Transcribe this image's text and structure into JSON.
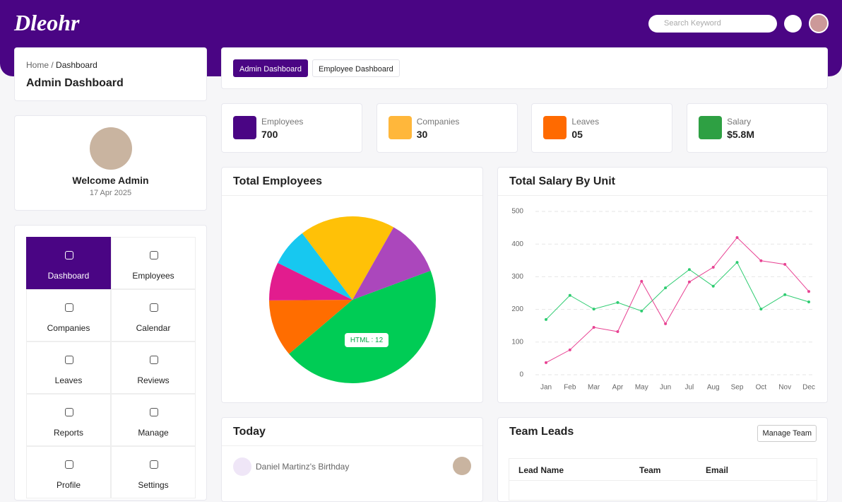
{
  "header": {
    "logo": "Dleohr",
    "search_placeholder": "Search Keyword"
  },
  "breadcrumb": {
    "home": "Home",
    "current": "Dashboard",
    "title": "Admin Dashboard"
  },
  "tabs": [
    "Admin Dashboard",
    "Employee Dashboard"
  ],
  "welcome": {
    "title": "Welcome Admin",
    "date": "17 Apr 2025"
  },
  "stats": [
    {
      "label": "Employees",
      "value": "700"
    },
    {
      "label": "Companies",
      "value": "30"
    },
    {
      "label": "Leaves",
      "value": "05"
    },
    {
      "label": "Salary",
      "value": "$5.8M"
    }
  ],
  "menu": [
    "Dashboard",
    "Employees",
    "Companies",
    "Calendar",
    "Leaves",
    "Reviews",
    "Reports",
    "Manage",
    "Profile",
    "Settings"
  ],
  "cards": {
    "pie_title": "Total Employees",
    "line_title": "Total Salary By Unit",
    "today_title": "Today",
    "team_title": "Team Leads",
    "team_button": "Manage Team"
  },
  "today": [
    {
      "name": "Daniel Martinz's",
      "event": "Birthday"
    }
  ],
  "team_table": {
    "headers": [
      "Lead Name",
      "Team",
      "Email"
    ]
  },
  "chart_data": [
    {
      "type": "pie",
      "categories": [
        "HTML",
        null,
        null,
        null,
        null,
        null
      ],
      "values": [
        12,
        3,
        2,
        2,
        5,
        3
      ],
      "colors": [
        "#00cc55",
        "#ff6d00",
        "#e21c8e",
        "#17c8f0",
        "#ffc107",
        "#ab47bc"
      ]
    },
    {
      "type": "line",
      "categories": [
        "Jan",
        "Feb",
        "Mar",
        "Apr",
        "May",
        "Jun",
        "Jul",
        "Aug",
        "Sep",
        "Oct",
        "Nov",
        "Dec"
      ],
      "series": [
        {
          "color": "#2ecc71",
          "values": [
            169,
            243,
            201,
            221,
            195,
            266,
            322,
            271,
            344,
            201,
            245,
            223
          ]
        },
        {
          "color": "#e84393",
          "values": [
            37,
            76,
            145,
            132,
            286,
            156,
            284,
            329,
            420,
            349,
            338,
            255
          ]
        }
      ],
      "ylim": [
        0,
        500
      ],
      "yticks": [
        0,
        100,
        200,
        300,
        400,
        500
      ],
      "grid": true
    }
  ]
}
